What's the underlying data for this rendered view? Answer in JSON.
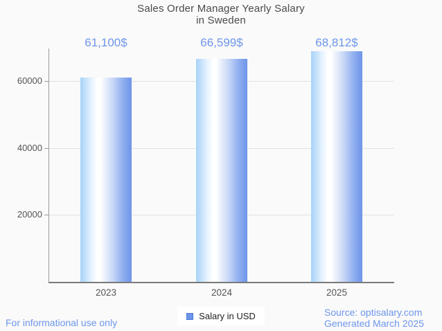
{
  "page": {
    "background": "#fafafa",
    "title": {
      "line1": "Sales Order Manager Yearly Salary",
      "line2": "in Sweden"
    }
  },
  "chart_data": {
    "type": "bar",
    "title": "Sales Order Manager Yearly Salary in Sweden",
    "categories": [
      "2023",
      "2024",
      "2025"
    ],
    "series": [
      {
        "name": "Salary in USD",
        "values": [
          61100,
          66599,
          68812
        ]
      }
    ],
    "value_labels": [
      "61,100$",
      "66,599$",
      "68,812$"
    ],
    "yticks": [
      20000,
      40000,
      60000
    ],
    "ytick_labels": [
      "20000",
      "40000",
      "60000"
    ],
    "ylim": [
      0,
      69700
    ],
    "grid": true,
    "legend_position": "bottom",
    "colors": {
      "accent_blue": "#6d96ea",
      "bar_gradient": [
        "#a7d2f9",
        "#ffffff",
        "#6d94e9"
      ],
      "gridline": "#e2e2e2",
      "axis": "#9a9a9a",
      "axis_dark": "#7a7a7a",
      "title_text": "#4a4a4a",
      "tick_text": "#545454",
      "legend_swatch": "#6d96ea",
      "legend_swatch_border": "#4b79d8",
      "legend_background": "#ffffff",
      "background": "#fafafa"
    }
  },
  "legend": {
    "label": "Salary in USD"
  },
  "footer": {
    "left": "For informational use only",
    "source": "Source: optisalary.com",
    "generated": "Generated March 2025"
  }
}
